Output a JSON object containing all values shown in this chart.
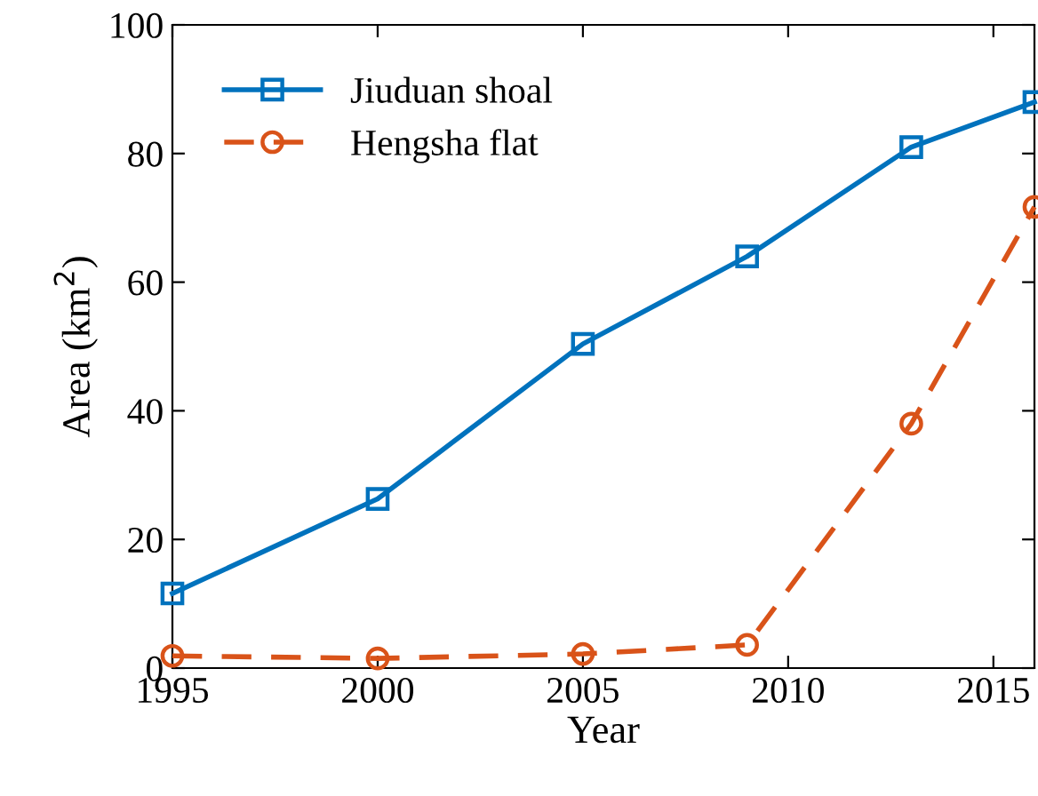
{
  "chart_data": {
    "type": "line",
    "xlabel": "Year",
    "ylabel": "Area (km$^{2}$)",
    "x": [
      1995,
      2000,
      2005,
      2009,
      2013,
      2016
    ],
    "series": [
      {
        "name": "Jiuduan shoal",
        "color": "#0072bd",
        "values": [
          11.6,
          26.3,
          50.4,
          64,
          81,
          88
        ],
        "marker": "square",
        "line_style": "solid"
      },
      {
        "name": "Hengsha flat",
        "color": "#d95319",
        "values": [
          1.9,
          1.5,
          2.2,
          3.6,
          38,
          71.7
        ],
        "marker": "circle",
        "line_style": "dashed"
      }
    ],
    "xlim": [
      1995,
      2016
    ],
    "xticks": [
      1995,
      2000,
      2005,
      2010,
      2015
    ],
    "ylim": [
      0,
      100
    ],
    "yticks": [
      0,
      20,
      40,
      60,
      80,
      100
    ],
    "grid": false,
    "legend": "top left"
  }
}
